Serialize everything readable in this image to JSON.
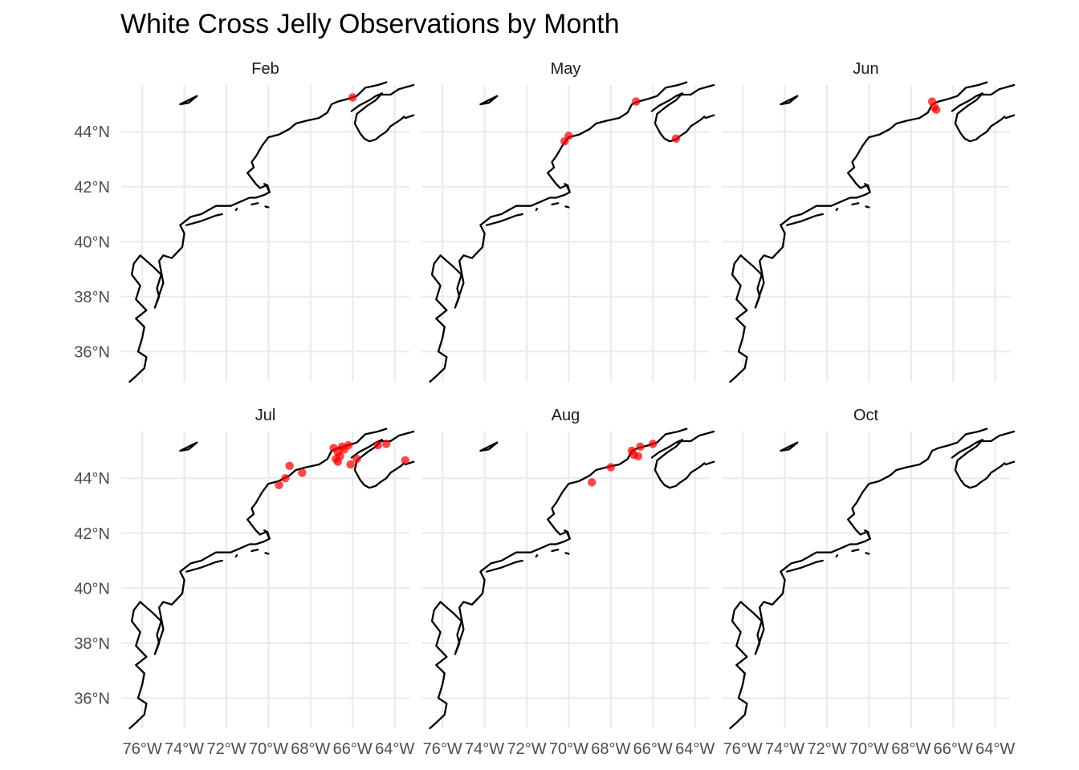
{
  "chart_data": {
    "type": "scatter",
    "title": "White Cross Jelly Observations by Month",
    "xlabel": "",
    "ylabel": "",
    "x_ticks": [
      -76,
      -74,
      -72,
      -70,
      -68,
      -66,
      -64
    ],
    "x_tick_labels": [
      "76°W",
      "74°W",
      "72°W",
      "70°W",
      "68°W",
      "66°W",
      "64°W"
    ],
    "y_ticks": [
      36,
      38,
      40,
      42,
      44
    ],
    "y_tick_labels": [
      "36°N",
      "38°N",
      "40°N",
      "42°N",
      "44°N"
    ],
    "xlim": [
      -77,
      -63.3
    ],
    "ylim": [
      34.9,
      45.7
    ],
    "grid": true,
    "point_color": "#ff0000",
    "coastline_color": "#000000",
    "facets": [
      {
        "label": "Feb",
        "points": [
          {
            "lon": -66.0,
            "lat": 45.25
          }
        ]
      },
      {
        "label": "May",
        "points": [
          {
            "lon": -70.2,
            "lat": 43.65
          },
          {
            "lon": -70.0,
            "lat": 43.85
          },
          {
            "lon": -66.8,
            "lat": 45.1
          },
          {
            "lon": -64.9,
            "lat": 43.75
          }
        ]
      },
      {
        "label": "Jun",
        "points": [
          {
            "lon": -67.0,
            "lat": 45.1
          },
          {
            "lon": -66.9,
            "lat": 44.9
          },
          {
            "lon": -66.8,
            "lat": 44.8
          }
        ]
      },
      {
        "label": "Jul",
        "points": [
          {
            "lon": -69.5,
            "lat": 43.75
          },
          {
            "lon": -69.2,
            "lat": 44.0
          },
          {
            "lon": -69.0,
            "lat": 44.45
          },
          {
            "lon": -68.4,
            "lat": 44.2
          },
          {
            "lon": -66.9,
            "lat": 45.1
          },
          {
            "lon": -66.7,
            "lat": 44.95
          },
          {
            "lon": -66.8,
            "lat": 44.7
          },
          {
            "lon": -66.6,
            "lat": 44.8
          },
          {
            "lon": -66.4,
            "lat": 45.05
          },
          {
            "lon": -66.2,
            "lat": 45.2
          },
          {
            "lon": -66.5,
            "lat": 45.15
          },
          {
            "lon": -66.7,
            "lat": 44.6
          },
          {
            "lon": -66.1,
            "lat": 44.5
          },
          {
            "lon": -65.8,
            "lat": 44.7
          },
          {
            "lon": -64.8,
            "lat": 45.2
          },
          {
            "lon": -64.4,
            "lat": 45.25
          },
          {
            "lon": -63.5,
            "lat": 44.65
          }
        ]
      },
      {
        "label": "Aug",
        "points": [
          {
            "lon": -68.9,
            "lat": 43.85
          },
          {
            "lon": -68.0,
            "lat": 44.4
          },
          {
            "lon": -67.0,
            "lat": 45.0
          },
          {
            "lon": -66.9,
            "lat": 44.85
          },
          {
            "lon": -66.7,
            "lat": 44.8
          },
          {
            "lon": -66.6,
            "lat": 45.15
          },
          {
            "lon": -66.0,
            "lat": 45.25
          }
        ]
      },
      {
        "label": "Oct",
        "points": []
      }
    ]
  }
}
